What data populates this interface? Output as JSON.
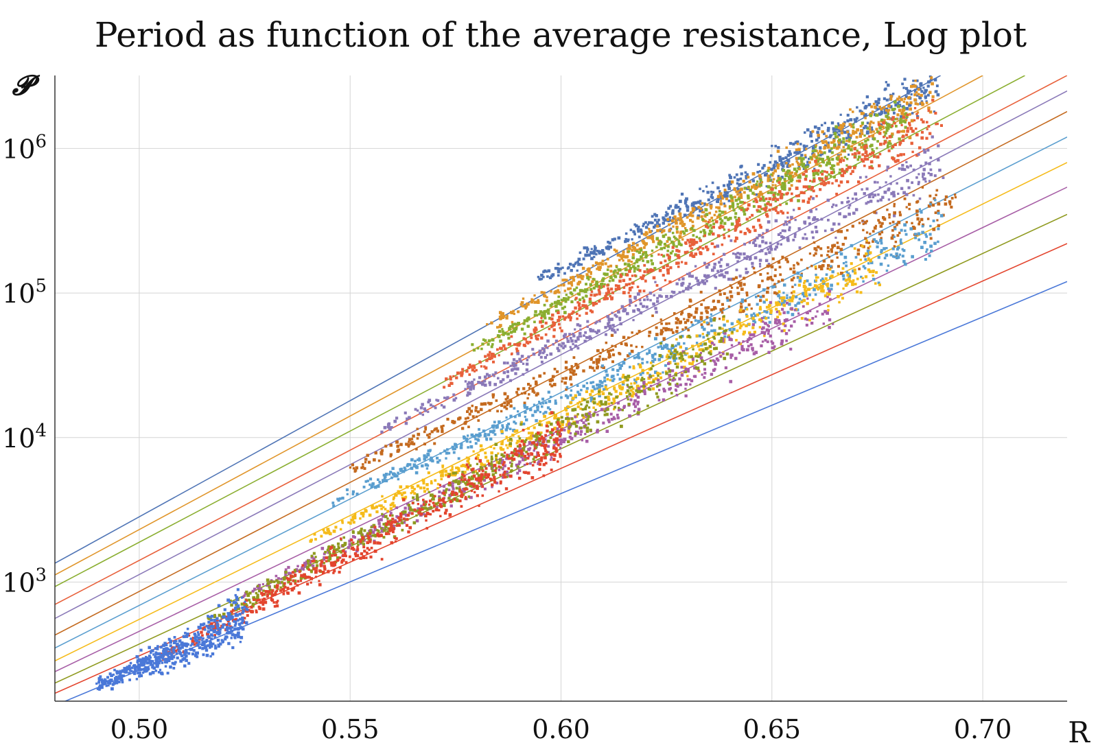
{
  "chart_data": {
    "type": "scatter",
    "title": "Period as function of the average resistance, Log plot",
    "xlabel": "R",
    "ylabel": "𝓟",
    "xscale": "linear",
    "yscale": "log",
    "xlim": [
      0.48,
      0.72
    ],
    "ylim": [
      150,
      3200000
    ],
    "grid": true,
    "legend": "none",
    "x_ticks": [
      {
        "value": 0.5,
        "label": "0.50"
      },
      {
        "value": 0.55,
        "label": "0.55"
      },
      {
        "value": 0.6,
        "label": "0.60"
      },
      {
        "value": 0.65,
        "label": "0.65"
      },
      {
        "value": 0.7,
        "label": "0.70"
      }
    ],
    "y_ticks": [
      {
        "value": 1000,
        "base": "10",
        "exp": "3"
      },
      {
        "value": 10000,
        "base": "10",
        "exp": "4"
      },
      {
        "value": 100000,
        "base": "10",
        "exp": "5"
      },
      {
        "value": 1000000,
        "base": "10",
        "exp": "6"
      }
    ],
    "series": [
      {
        "color": "#4f74b5",
        "line": [
          [
            0.48,
            1350
          ],
          [
            0.69,
            3200000
          ]
        ],
        "cloud": {
          "x_start": 0.594,
          "x_end": 0.69,
          "y_start": 120000,
          "y_end": 2800000
        }
      },
      {
        "color": "#e0952a",
        "line": [
          [
            0.48,
            1120
          ],
          [
            0.7,
            3200000
          ]
        ],
        "cloud": {
          "x_start": 0.583,
          "x_end": 0.688,
          "y_start": 60000,
          "y_end": 2400000
        }
      },
      {
        "color": "#8aae30",
        "line": [
          [
            0.48,
            930
          ],
          [
            0.71,
            3200000
          ]
        ],
        "cloud": {
          "x_start": 0.579,
          "x_end": 0.682,
          "y_start": 40000,
          "y_end": 1600000
        }
      },
      {
        "color": "#e8603a",
        "line": [
          [
            0.48,
            700
          ],
          [
            0.72,
            3200000
          ]
        ],
        "cloud": {
          "x_start": 0.57,
          "x_end": 0.69,
          "y_start": 22000,
          "y_end": 1700000
        }
      },
      {
        "color": "#8a79b8",
        "line": [
          [
            0.48,
            560
          ],
          [
            0.72,
            2500000
          ]
        ],
        "cloud": {
          "x_start": 0.557,
          "x_end": 0.69,
          "y_start": 11000,
          "y_end": 800000
        }
      },
      {
        "color": "#c46a1f",
        "line": [
          [
            0.48,
            430
          ],
          [
            0.72,
            1800000
          ]
        ],
        "cloud": {
          "x_start": 0.55,
          "x_end": 0.693,
          "y_start": 6000,
          "y_end": 450000
        }
      },
      {
        "color": "#5a9ecf",
        "line": [
          [
            0.48,
            350
          ],
          [
            0.72,
            1200000
          ]
        ],
        "cloud": {
          "x_start": 0.545,
          "x_end": 0.69,
          "y_start": 3500,
          "y_end": 280000
        }
      },
      {
        "color": "#f5bb1a",
        "line": [
          [
            0.48,
            285
          ],
          [
            0.72,
            800000
          ]
        ],
        "cloud": {
          "x_start": 0.54,
          "x_end": 0.675,
          "y_start": 1900,
          "y_end": 160000
        }
      },
      {
        "color": "#a75ea6",
        "line": [
          [
            0.48,
            240
          ],
          [
            0.72,
            540000
          ]
        ],
        "cloud": {
          "x_start": 0.525,
          "x_end": 0.665,
          "y_start": 800,
          "y_end": 90000
        }
      },
      {
        "color": "#8f9a1f",
        "line": [
          [
            0.48,
            200
          ],
          [
            0.72,
            350000
          ]
        ],
        "cloud": {
          "x_start": 0.515,
          "x_end": 0.64,
          "y_start": 500,
          "y_end": 50000
        }
      },
      {
        "color": "#e3452e",
        "line": [
          [
            0.48,
            170
          ],
          [
            0.72,
            220000
          ]
        ],
        "cloud": {
          "x_start": 0.505,
          "x_end": 0.6,
          "y_start": 300,
          "y_end": 10000
        }
      },
      {
        "color": "#4a78d8",
        "line": [
          [
            0.48,
            140
          ],
          [
            0.72,
            120000
          ]
        ],
        "cloud": {
          "x_start": 0.49,
          "x_end": 0.525,
          "y_start": 190,
          "y_end": 550
        }
      }
    ]
  }
}
